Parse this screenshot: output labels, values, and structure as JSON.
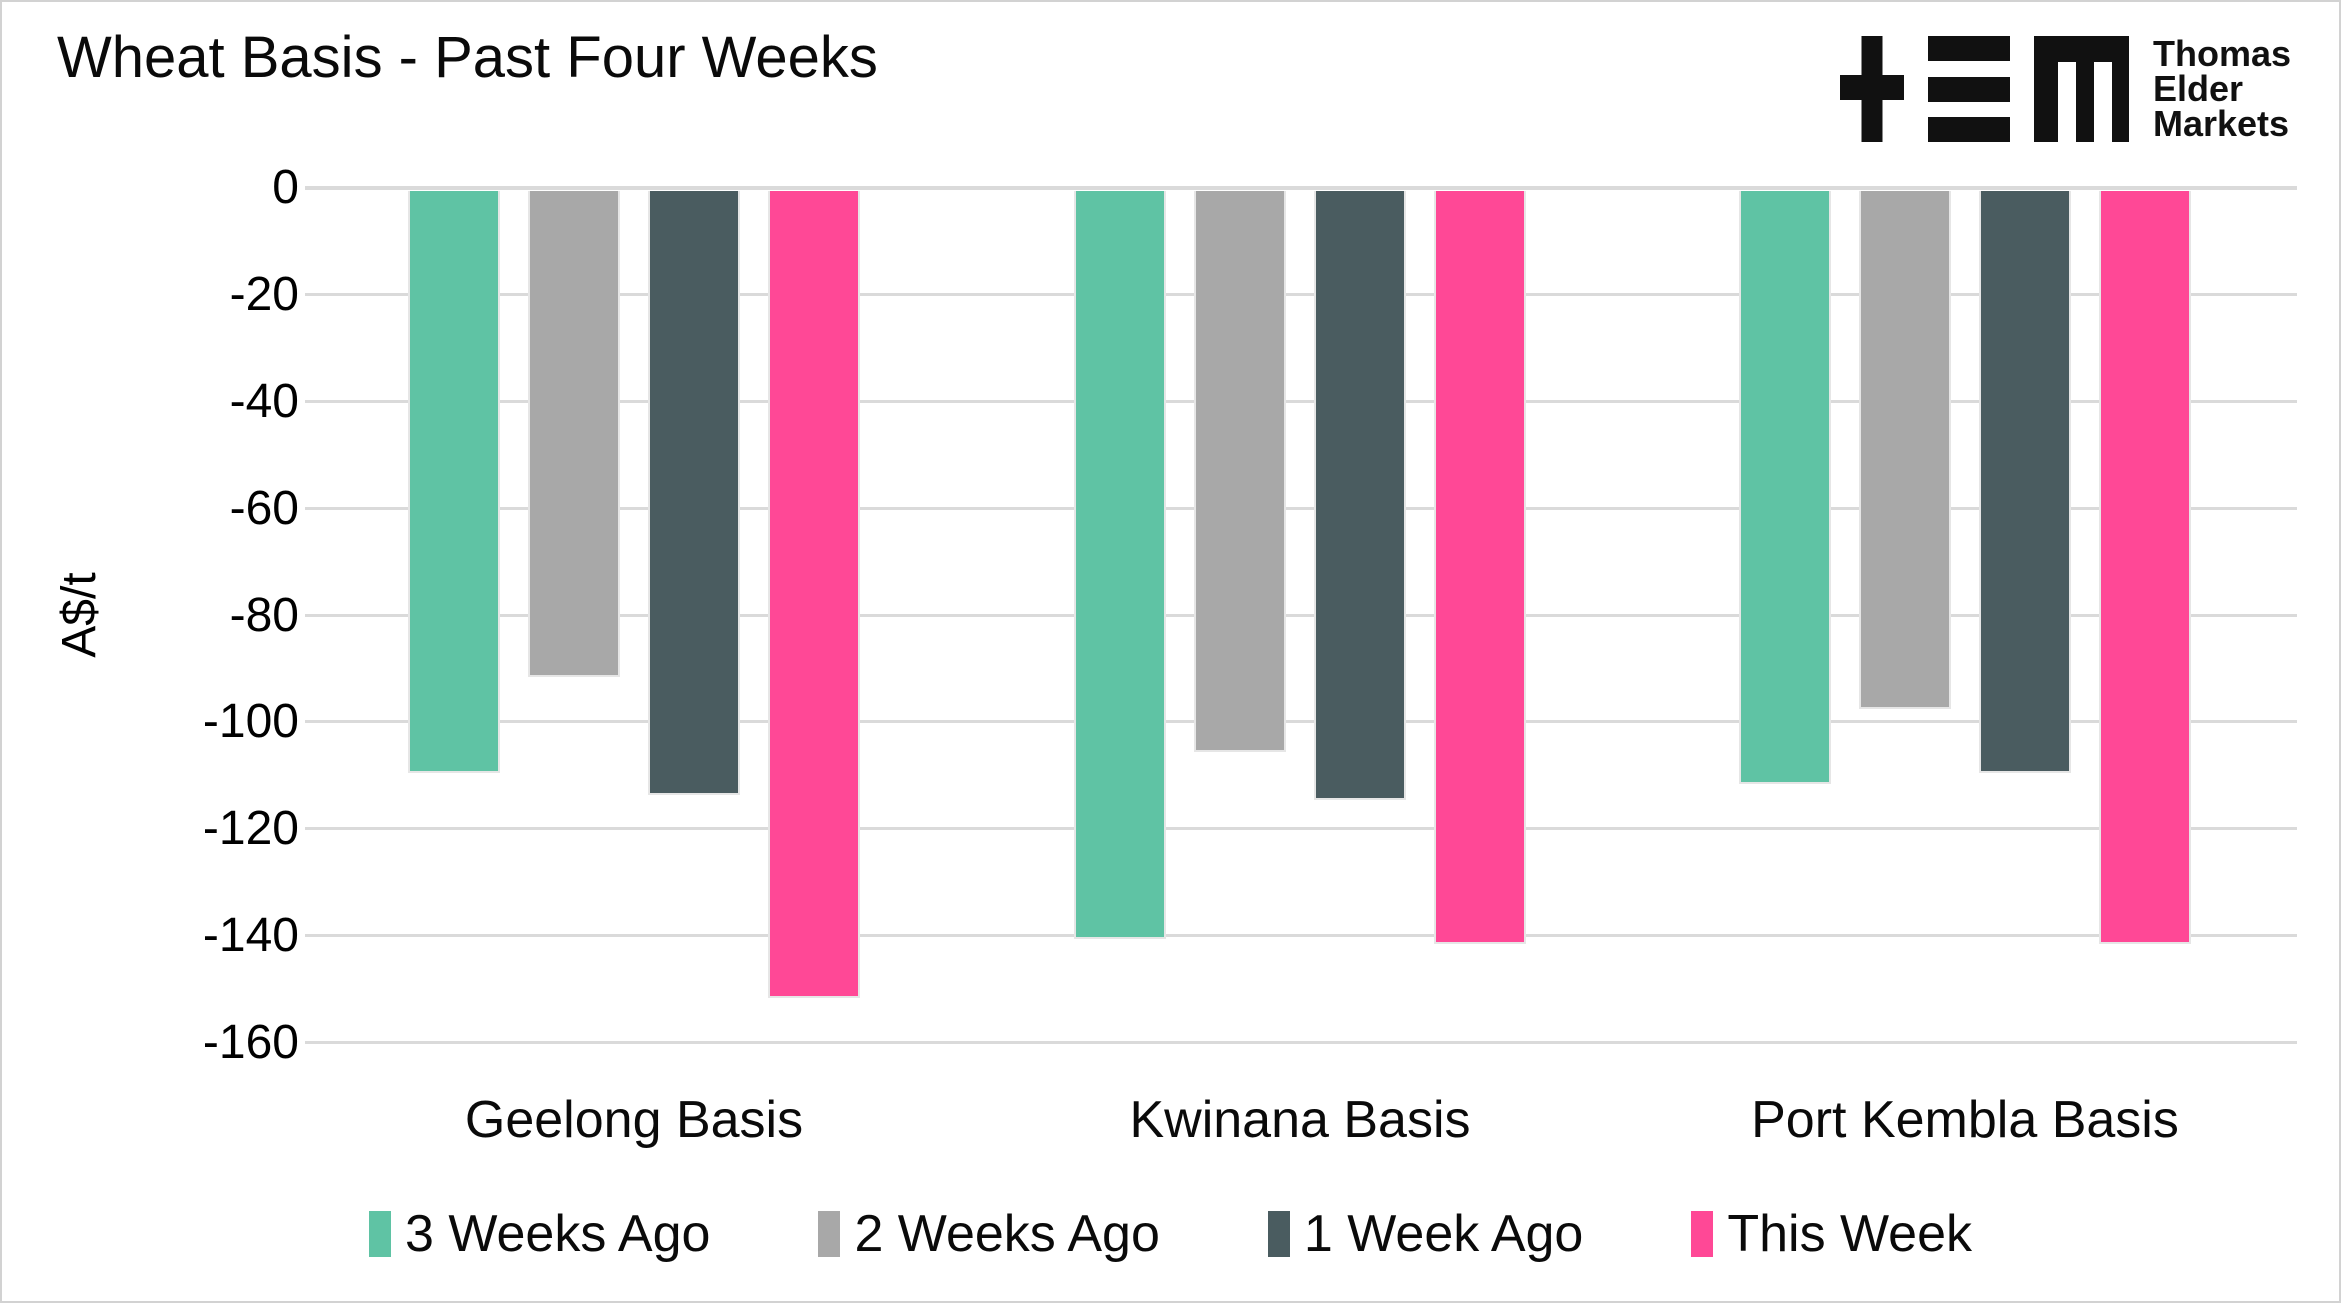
{
  "header": {
    "title": "Wheat Basis - Past Four Weeks",
    "logo_lines": [
      "Thomas",
      "Elder",
      "Markets"
    ]
  },
  "chart_data": {
    "type": "bar",
    "title": "Wheat Basis - Past Four Weeks",
    "categories": [
      "Geelong Basis",
      "Kwinana Basis",
      "Port Kembla Basis"
    ],
    "series": [
      {
        "name": "3 Weeks Ago",
        "color": "#5FC3A4",
        "values": [
          -109,
          -140,
          -111
        ]
      },
      {
        "name": "2 Weeks Ago",
        "color": "#A8A8A8",
        "values": [
          -91,
          -105,
          -97
        ]
      },
      {
        "name": "1 Week Ago",
        "color": "#4A5C60",
        "values": [
          -113,
          -114,
          -109
        ]
      },
      {
        "name": "This Week",
        "color": "#FF4896",
        "values": [
          -151,
          -141,
          -141
        ]
      }
    ],
    "xlabel": "",
    "ylabel": "A$/t",
    "ylim": [
      -160,
      0
    ],
    "yticks": [
      0,
      -20,
      -40,
      -60,
      -80,
      -100,
      -120,
      -140,
      -160
    ],
    "grid": true,
    "legend_position": "bottom"
  },
  "colors": {
    "background": "#FFFFFF",
    "grid": "#DADADA",
    "text": "#0A0A0A",
    "border": "#D2D2D2",
    "logo": "#111111"
  }
}
